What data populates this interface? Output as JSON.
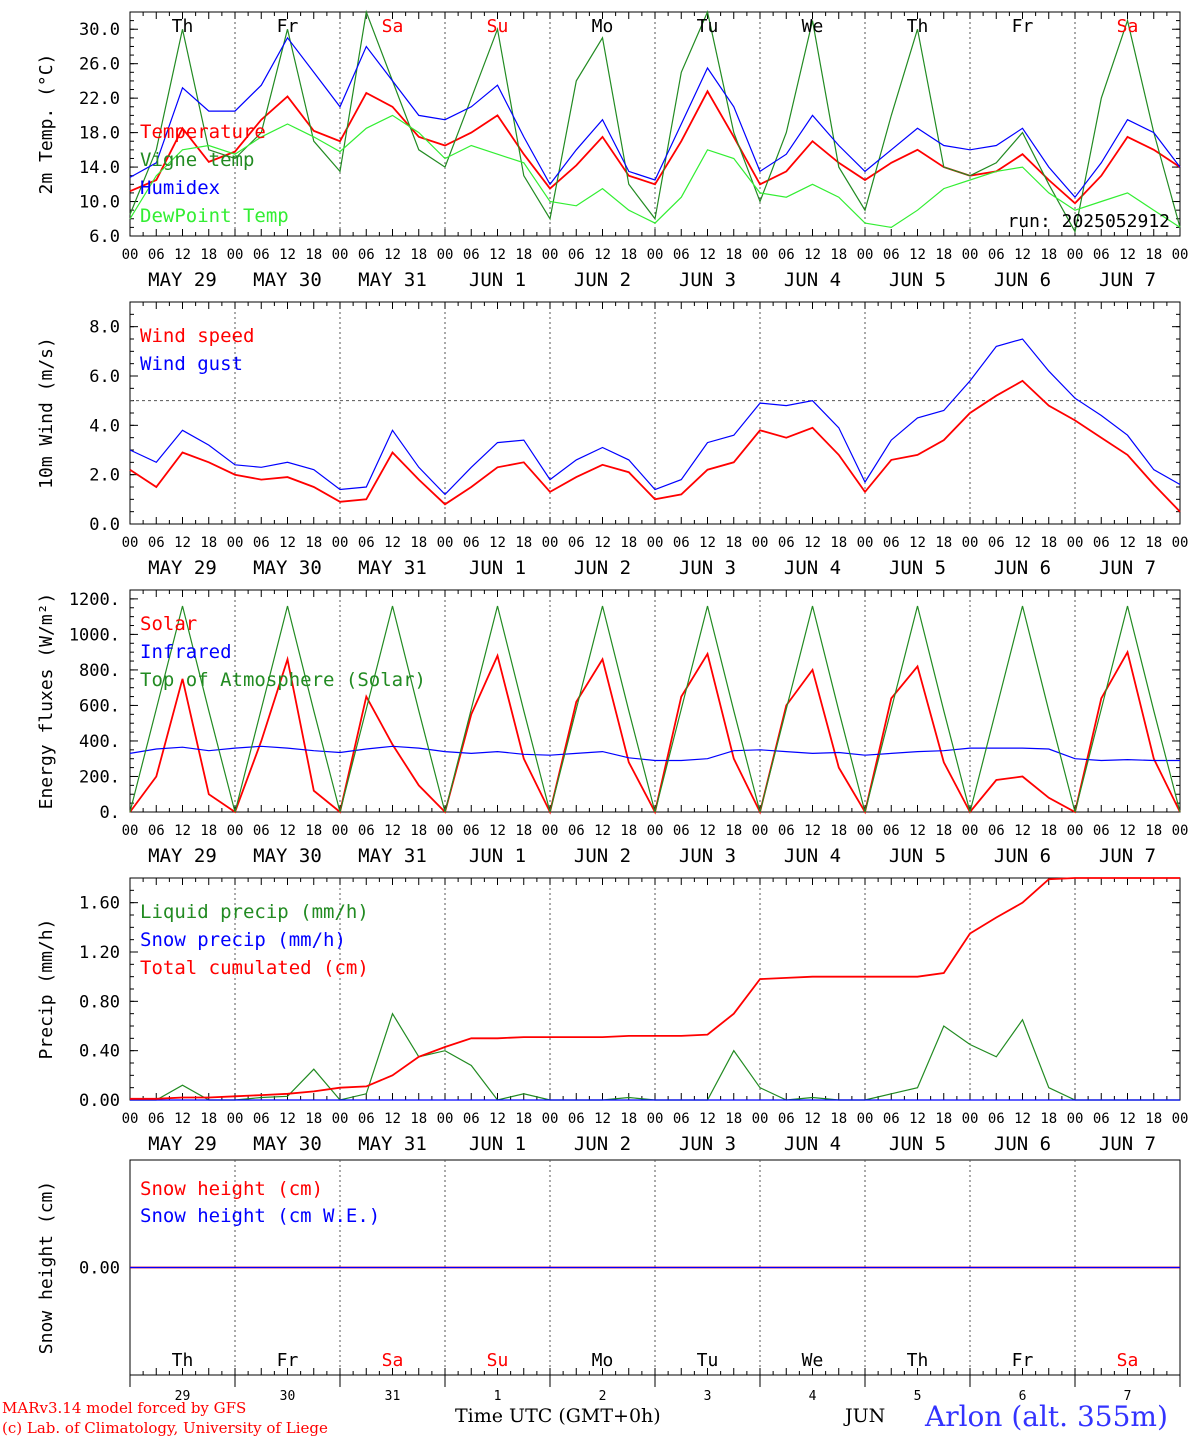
{
  "run_label": "run: 2025052912",
  "days": [
    {
      "dow": "Th",
      "date": "MAY 29",
      "num": "29",
      "weekend": false
    },
    {
      "dow": "Fr",
      "date": "MAY 30",
      "num": "30",
      "weekend": false
    },
    {
      "dow": "Sa",
      "date": "MAY 31",
      "num": "31",
      "weekend": true
    },
    {
      "dow": "Su",
      "date": "JUN  1",
      "num": "1",
      "weekend": true
    },
    {
      "dow": "Mo",
      "date": "JUN  2",
      "num": "2",
      "weekend": false
    },
    {
      "dow": "Tu",
      "date": "JUN  3",
      "num": "3",
      "weekend": false
    },
    {
      "dow": "We",
      "date": "JUN  4",
      "num": "4",
      "weekend": false
    },
    {
      "dow": "Th",
      "date": "JUN  5",
      "num": "5",
      "weekend": false
    },
    {
      "dow": "Fr",
      "date": "JUN  6",
      "num": "6",
      "weekend": false
    },
    {
      "dow": "Sa",
      "date": "JUN  7",
      "num": "7",
      "weekend": true
    }
  ],
  "hour_ticks": [
    "00",
    "06",
    "12",
    "18"
  ],
  "colors": {
    "red": "#ff0000",
    "green": "#228b22",
    "blue": "#0000ff",
    "lightgreen": "#33ee33",
    "weekend": "#ff0000",
    "axis": "#000000",
    "grid": "#555555"
  },
  "footer": {
    "credit_line1": "MARv3.14 model forced by GFS",
    "credit_line2": "(c) Lab. of Climatology, University of Liege",
    "x_title": "Time UTC (GMT+0h)",
    "month_label": "JUN",
    "station": "Arlon (alt. 355m)"
  },
  "chart_data": [
    {
      "type": "line",
      "ylabel": "2m Temp. (°C)",
      "ylim": [
        6,
        32
      ],
      "y_ticks": [
        "6.0",
        "10.0",
        "14.0",
        "18.0",
        "22.0",
        "26.0",
        "30.0"
      ],
      "y_tick_values": [
        6,
        10,
        14,
        18,
        22,
        26,
        30
      ],
      "legend_placement": "top-left",
      "reference_line": null,
      "x_hours": [
        0,
        6,
        12,
        18,
        24,
        30,
        36,
        42,
        48,
        54,
        60,
        66,
        72,
        78,
        84,
        90,
        96,
        102,
        108,
        114,
        120,
        126,
        132,
        138,
        144,
        150,
        156,
        162,
        168,
        174,
        180,
        186,
        192,
        198,
        204,
        210,
        216,
        222,
        228,
        234,
        240
      ],
      "series": [
        {
          "name": "Temperature",
          "color": "red",
          "values": [
            11.2,
            12.5,
            18.5,
            14.6,
            15.8,
            19.5,
            22.2,
            18.2,
            17.0,
            22.6,
            21.0,
            17.5,
            16.5,
            18.0,
            20.0,
            15.5,
            11.5,
            14.2,
            17.5,
            13.0,
            12.0,
            17.0,
            22.8,
            17.5,
            12.0,
            13.5,
            17.0,
            14.5,
            12.5,
            14.5,
            16.0,
            14.0,
            13.0,
            13.5,
            15.5,
            12.5,
            9.8,
            13.0,
            17.5,
            16.0,
            14.0
          ]
        },
        {
          "name": "Vigne temp",
          "color": "green",
          "values": [
            8.5,
            16.0,
            30.0,
            16.0,
            15.0,
            18.0,
            30.0,
            17.0,
            13.5,
            32.0,
            24.0,
            16.0,
            14.0,
            22.0,
            30.0,
            13.0,
            8.0,
            24.0,
            29.0,
            12.0,
            8.0,
            25.0,
            32.0,
            18.0,
            10.0,
            18.0,
            31.0,
            14.0,
            9.0,
            20.0,
            30.0,
            14.0,
            13.0,
            14.5,
            18.0,
            12.0,
            6.5,
            22.0,
            31.0,
            18.0,
            7.0
          ]
        },
        {
          "name": "Humidex",
          "color": "blue",
          "values": [
            12.8,
            14.5,
            23.2,
            20.5,
            20.5,
            23.5,
            29.0,
            25.0,
            21.0,
            28.0,
            24.0,
            20.0,
            19.5,
            21.0,
            23.5,
            17.5,
            12.0,
            16.0,
            19.5,
            13.5,
            12.5,
            19.0,
            25.5,
            21.0,
            13.5,
            15.5,
            20.0,
            16.5,
            13.5,
            16.0,
            18.5,
            16.5,
            16.0,
            16.5,
            18.5,
            14.0,
            10.5,
            14.5,
            19.5,
            18.0,
            14.0
          ]
        },
        {
          "name": "DewPoint Temp",
          "color": "lightgreen",
          "values": [
            8.0,
            13.0,
            16.0,
            16.5,
            15.5,
            17.5,
            19.0,
            17.5,
            15.8,
            18.5,
            20.0,
            18.0,
            15.0,
            16.5,
            15.5,
            14.5,
            10.0,
            9.5,
            11.5,
            9.0,
            7.5,
            10.5,
            16.0,
            15.0,
            11.0,
            10.5,
            12.0,
            10.5,
            7.5,
            7.0,
            9.0,
            11.5,
            12.5,
            13.5,
            14.0,
            11.0,
            9.0,
            10.0,
            11.0,
            9.0,
            7.0
          ]
        }
      ]
    },
    {
      "type": "line",
      "ylabel": "10m Wind (m/s)",
      "ylim": [
        0,
        9
      ],
      "y_ticks": [
        "0.0",
        "2.0",
        "4.0",
        "6.0",
        "8.0"
      ],
      "y_tick_values": [
        0,
        2,
        4,
        6,
        8
      ],
      "legend_placement": "top-left",
      "reference_line": 5,
      "x_hours": [
        0,
        6,
        12,
        18,
        24,
        30,
        36,
        42,
        48,
        54,
        60,
        66,
        72,
        78,
        84,
        90,
        96,
        102,
        108,
        114,
        120,
        126,
        132,
        138,
        144,
        150,
        156,
        162,
        168,
        174,
        180,
        186,
        192,
        198,
        204,
        210,
        216,
        222,
        228,
        234,
        240
      ],
      "series": [
        {
          "name": "Wind speed",
          "color": "red",
          "values": [
            2.2,
            1.5,
            2.9,
            2.5,
            2.0,
            1.8,
            1.9,
            1.5,
            0.9,
            1.0,
            2.9,
            1.8,
            0.8,
            1.5,
            2.3,
            2.5,
            1.3,
            1.9,
            2.4,
            2.1,
            1.0,
            1.2,
            2.2,
            2.5,
            3.8,
            3.5,
            3.9,
            2.8,
            1.3,
            2.6,
            2.8,
            3.4,
            4.5,
            5.2,
            5.8,
            4.8,
            4.2,
            3.5,
            2.8,
            1.6,
            0.5
          ]
        },
        {
          "name": "Wind gust",
          "color": "blue",
          "values": [
            3.0,
            2.5,
            3.8,
            3.2,
            2.4,
            2.3,
            2.5,
            2.2,
            1.4,
            1.5,
            3.8,
            2.3,
            1.2,
            2.3,
            3.3,
            3.4,
            1.8,
            2.6,
            3.1,
            2.6,
            1.4,
            1.8,
            3.3,
            3.6,
            4.9,
            4.8,
            5.0,
            3.9,
            1.7,
            3.4,
            4.3,
            4.6,
            5.8,
            7.2,
            7.5,
            6.2,
            5.1,
            4.4,
            3.6,
            2.2,
            1.6
          ]
        }
      ]
    },
    {
      "type": "line",
      "ylabel": "Energy fluxes (W/m²)",
      "ylim": [
        0,
        1250
      ],
      "y_ticks": [
        "0.",
        "200.",
        "400.",
        "600.",
        "800.",
        "1000.",
        "1200."
      ],
      "y_tick_values": [
        0,
        200,
        400,
        600,
        800,
        1000,
        1200
      ],
      "legend_placement": "top-left",
      "reference_line": null,
      "x_hours": [
        0,
        6,
        12,
        18,
        24,
        30,
        36,
        42,
        48,
        54,
        60,
        66,
        72,
        78,
        84,
        90,
        96,
        102,
        108,
        114,
        120,
        126,
        132,
        138,
        144,
        150,
        156,
        162,
        168,
        174,
        180,
        186,
        192,
        198,
        204,
        210,
        216,
        222,
        228,
        234,
        240
      ],
      "series": [
        {
          "name": "Solar",
          "color": "red",
          "values": [
            0,
            200,
            750,
            100,
            0,
            400,
            860,
            120,
            0,
            650,
            380,
            150,
            0,
            550,
            880,
            300,
            0,
            620,
            860,
            280,
            0,
            650,
            890,
            300,
            0,
            600,
            800,
            250,
            0,
            640,
            820,
            280,
            0,
            180,
            200,
            80,
            0,
            640,
            900,
            300,
            0
          ]
        },
        {
          "name": "Infrared",
          "color": "blue",
          "values": [
            330,
            355,
            365,
            345,
            360,
            370,
            360,
            345,
            335,
            355,
            370,
            360,
            340,
            330,
            340,
            325,
            320,
            330,
            340,
            305,
            290,
            290,
            300,
            345,
            350,
            340,
            330,
            335,
            320,
            330,
            340,
            345,
            360,
            360,
            360,
            355,
            300,
            290,
            295,
            290,
            290
          ]
        },
        {
          "name": "Top of Atmosphere (Solar)",
          "color": "green",
          "values": [
            0,
            580,
            1160,
            570,
            0,
            580,
            1160,
            570,
            0,
            580,
            1160,
            570,
            0,
            580,
            1160,
            570,
            0,
            580,
            1160,
            570,
            0,
            580,
            1160,
            570,
            0,
            580,
            1160,
            570,
            0,
            580,
            1160,
            570,
            0,
            580,
            1160,
            570,
            0,
            580,
            1160,
            570,
            0
          ]
        }
      ]
    },
    {
      "type": "line",
      "ylabel": "Precip (mm/h)",
      "ylim": [
        0,
        1.8
      ],
      "y_ticks": [
        "0.00",
        "0.40",
        "0.80",
        "1.20",
        "1.60"
      ],
      "y_tick_values": [
        0,
        0.4,
        0.8,
        1.2,
        1.6
      ],
      "legend_placement": "top-left",
      "reference_line": null,
      "x_hours": [
        0,
        6,
        12,
        18,
        24,
        30,
        36,
        42,
        48,
        54,
        60,
        66,
        72,
        78,
        84,
        90,
        96,
        102,
        108,
        114,
        120,
        126,
        132,
        138,
        144,
        150,
        156,
        162,
        168,
        174,
        180,
        186,
        192,
        198,
        204,
        210,
        216,
        222,
        228,
        234,
        240
      ],
      "series": [
        {
          "name": "Liquid precip (mm/h)",
          "color": "green",
          "values": [
            0,
            0,
            0.12,
            0,
            0,
            0.02,
            0.03,
            0.25,
            0,
            0.05,
            0.7,
            0.35,
            0.4,
            0.28,
            0,
            0.05,
            0,
            0,
            0,
            0.02,
            0,
            0,
            0,
            0.4,
            0.1,
            0,
            0.02,
            0,
            0,
            0.05,
            0.1,
            0.6,
            0.45,
            0.35,
            0.65,
            0.1,
            0,
            0,
            0,
            0,
            0
          ]
        },
        {
          "name": "Snow precip (mm/h)",
          "color": "blue",
          "values": [
            0,
            0,
            0,
            0,
            0,
            0,
            0,
            0,
            0,
            0,
            0,
            0,
            0,
            0,
            0,
            0,
            0,
            0,
            0,
            0,
            0,
            0,
            0,
            0,
            0,
            0,
            0,
            0,
            0,
            0,
            0,
            0,
            0,
            0,
            0,
            0,
            0,
            0,
            0,
            0,
            0
          ]
        },
        {
          "name": "Total cumulated (cm)",
          "color": "red",
          "values": [
            0.01,
            0.01,
            0.02,
            0.02,
            0.03,
            0.04,
            0.05,
            0.07,
            0.1,
            0.11,
            0.2,
            0.35,
            0.43,
            0.5,
            0.5,
            0.51,
            0.51,
            0.51,
            0.51,
            0.52,
            0.52,
            0.52,
            0.53,
            0.7,
            0.98,
            0.99,
            1.0,
            1.0,
            1.0,
            1.0,
            1.0,
            1.03,
            1.35,
            1.48,
            1.6,
            1.79,
            1.8,
            1.8,
            1.8,
            1.8,
            1.8
          ]
        }
      ]
    },
    {
      "type": "line",
      "ylabel": "Snow height (cm)",
      "ylim": [
        -1,
        1
      ],
      "y_ticks": [
        "0.00"
      ],
      "y_tick_values": [
        0
      ],
      "legend_placement": "top-left",
      "reference_line": null,
      "x_hours": [
        0,
        240
      ],
      "series": [
        {
          "name": "Snow height (cm)",
          "color": "red",
          "values": [
            0,
            0
          ]
        },
        {
          "name": "Snow height (cm W.E.)",
          "color": "blue",
          "values": [
            0,
            0
          ]
        }
      ]
    }
  ]
}
